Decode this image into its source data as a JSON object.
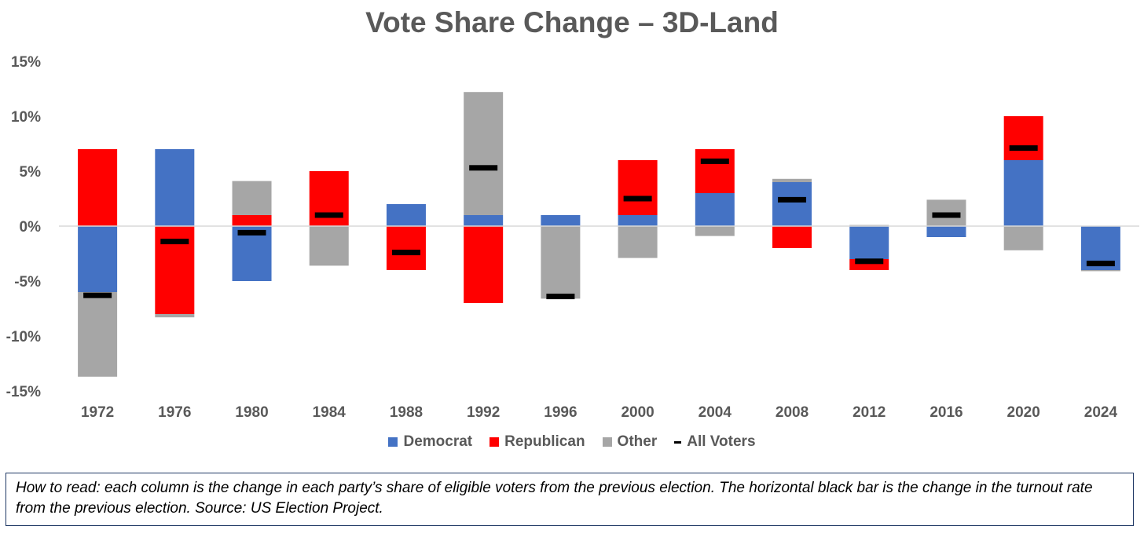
{
  "chart_data": {
    "type": "bar",
    "title": "Vote Share Change – 3D-Land",
    "categories": [
      "1972",
      "1976",
      "1980",
      "1984",
      "1988",
      "1992",
      "1996",
      "2000",
      "2004",
      "2008",
      "2012",
      "2016",
      "2020",
      "2024"
    ],
    "series": [
      {
        "name": "Democrat",
        "color": "#4472c4",
        "values": [
          -6.0,
          7.0,
          -5.0,
          0.0,
          2.0,
          1.0,
          1.0,
          1.0,
          3.0,
          4.0,
          -3.0,
          -1.0,
          6.0,
          -4.0
        ]
      },
      {
        "name": "Republican",
        "color": "#ff0000",
        "values": [
          7.0,
          -8.0,
          1.0,
          5.0,
          -4.0,
          -7.0,
          0.0,
          5.0,
          4.0,
          -2.0,
          -1.0,
          0.0,
          4.0,
          0.0
        ]
      },
      {
        "name": "Other",
        "color": "#a6a6a6",
        "values": [
          -7.7,
          -0.3,
          3.1,
          -3.6,
          0.0,
          11.2,
          -6.6,
          -2.9,
          -0.9,
          0.3,
          0.1,
          2.4,
          -2.2,
          -0.1
        ]
      },
      {
        "name": "All Voters",
        "color": "#000000",
        "marker": "dash",
        "values": [
          -6.3,
          -1.4,
          -0.6,
          1.0,
          -2.4,
          5.3,
          -6.4,
          2.5,
          5.9,
          2.4,
          -3.2,
          1.0,
          7.1,
          -3.4
        ]
      }
    ],
    "ylim": [
      -15,
      15
    ],
    "yticks": [
      15,
      10,
      5,
      0,
      -5,
      -10,
      -15
    ],
    "ytick_labels": [
      "15%",
      "10%",
      "5%",
      "0%",
      "-5%",
      "-10%",
      "-15%"
    ],
    "xlabel": "",
    "ylabel": "",
    "legend_position": "bottom",
    "grid": false
  },
  "note": "How to read: each column is the change in each party’s share of eligible voters from the previous election. The horizontal black bar is the change in the turnout rate from the previous election. Source: US Election Project."
}
